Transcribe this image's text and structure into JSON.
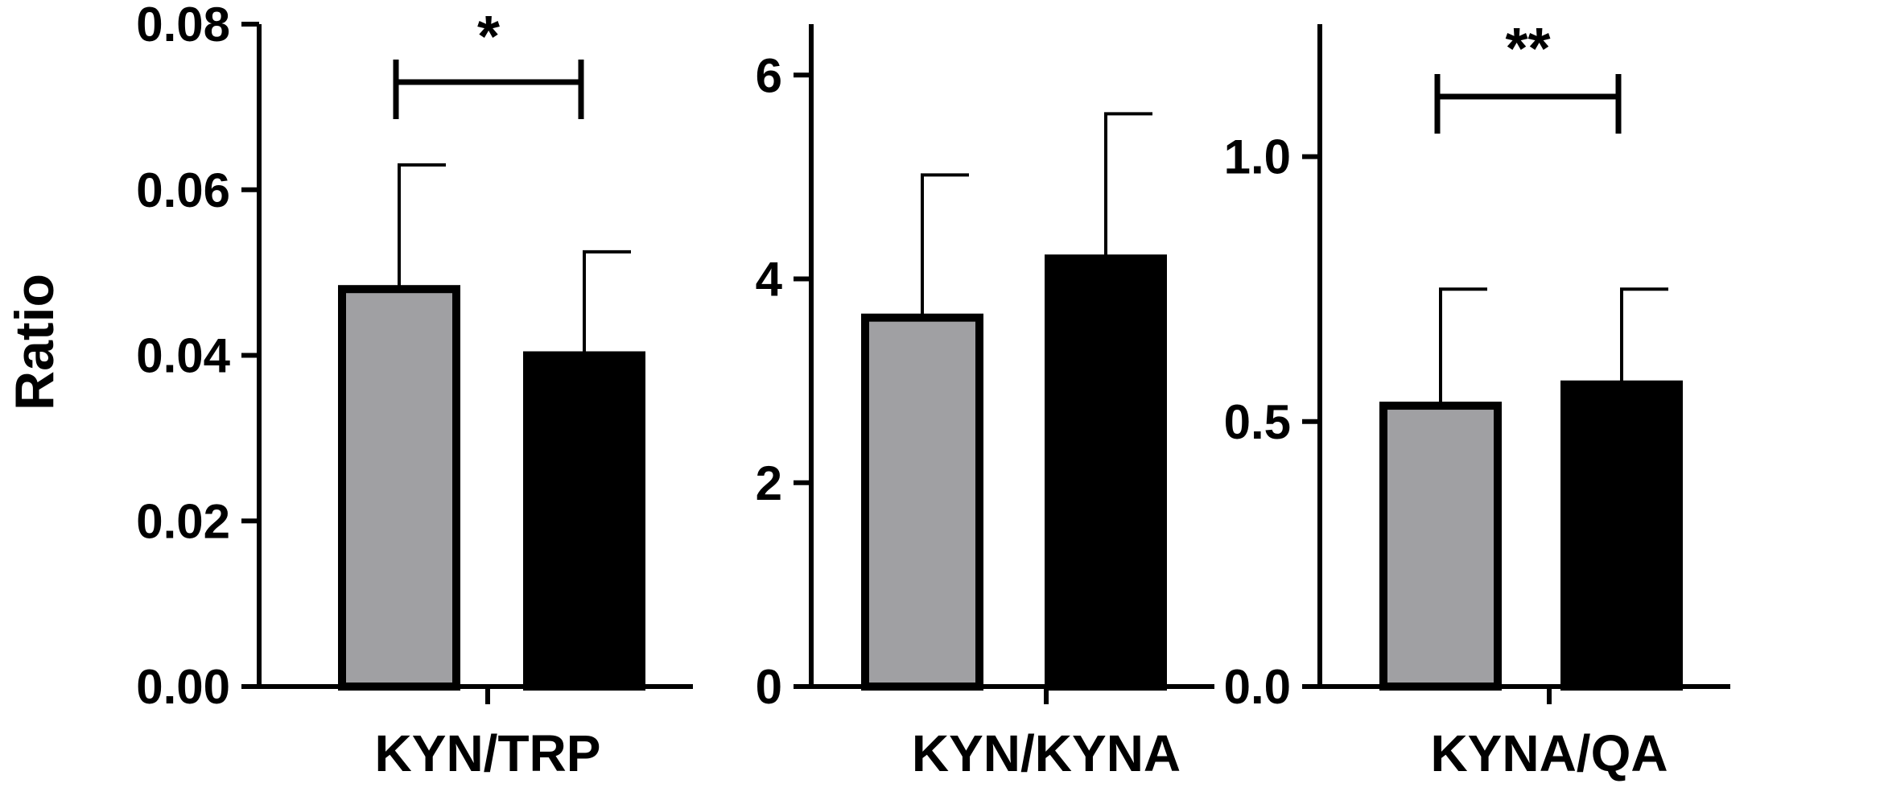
{
  "chart_data": [
    {
      "type": "bar",
      "category_label": "KYN/TRP",
      "ylabel": "Ratio",
      "ylim": [
        0,
        0.08
      ],
      "yticks": [
        0,
        0.02,
        0.04,
        0.06,
        0.08
      ],
      "ytick_labels": [
        "0.00",
        "0.02",
        "0.04",
        "0.06",
        "0.08"
      ],
      "bars": [
        {
          "value": 0.048,
          "error": 0.015,
          "color": "#a0a0a3"
        },
        {
          "value": 0.04,
          "error": 0.0125,
          "color": "#000000"
        }
      ],
      "significance": "*"
    },
    {
      "type": "bar",
      "category_label": "KYN/KYNA",
      "ylabel": "",
      "ylim": [
        0,
        6.5
      ],
      "yticks": [
        0,
        2,
        4,
        6
      ],
      "ytick_labels": [
        "0",
        "2",
        "4",
        "6"
      ],
      "bars": [
        {
          "value": 3.62,
          "error": 1.4,
          "color": "#a0a0a3"
        },
        {
          "value": 4.2,
          "error": 1.42,
          "color": "#000000"
        }
      ],
      "significance": ""
    },
    {
      "type": "bar",
      "category_label": "KYNA/QA",
      "ylabel": "",
      "ylim": [
        0,
        1.25
      ],
      "yticks": [
        0,
        0.5,
        1.0
      ],
      "ytick_labels": [
        "0.0",
        "0.5",
        "1.0"
      ],
      "bars": [
        {
          "value": 0.53,
          "error": 0.22,
          "color": "#a0a0a3"
        },
        {
          "value": 0.57,
          "error": 0.18,
          "color": "#000000"
        }
      ],
      "significance": "**"
    }
  ]
}
